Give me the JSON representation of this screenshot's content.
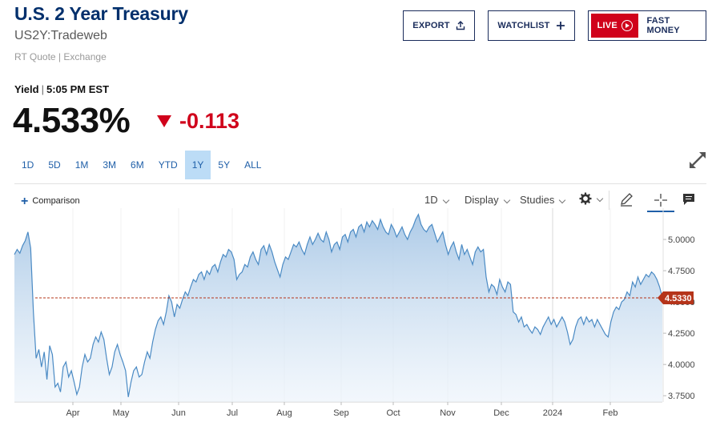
{
  "header": {
    "title": "U.S. 2 Year Treasury",
    "symbol": "US2Y:Tradeweb",
    "quote_source": "RT Quote | Exchange",
    "yield_label": "Yield",
    "time": "5:05 PM EST",
    "price": "4.533%",
    "change": "-0.113",
    "change_color": "#d0021b"
  },
  "buttons": {
    "export": "EXPORT",
    "watchlist": "WATCHLIST",
    "live": "LIVE",
    "fast_money": "FAST MONEY"
  },
  "ranges": [
    "1D",
    "5D",
    "1M",
    "3M",
    "6M",
    "YTD",
    "1Y",
    "5Y",
    "ALL"
  ],
  "active_range": "1Y",
  "toolbar": {
    "comparison": "Comparison",
    "interval": "1D",
    "display": "Display",
    "studies": "Studies"
  },
  "chart_data": {
    "type": "area",
    "x_ticks": [
      "Apr",
      "May",
      "Jun",
      "Jul",
      "Aug",
      "Sep",
      "Oct",
      "Nov",
      "Dec",
      "2024",
      "Feb"
    ],
    "y_ticks": [
      "5.0000",
      "4.7500",
      "4.5000",
      "4.2500",
      "4.0000",
      "3.7500"
    ],
    "ylim": [
      3.7,
      5.25
    ],
    "current_value_label": "4.5330",
    "current_value": 4.533,
    "line_color": "#4a8ac4",
    "marker_color": "#b5341a",
    "values": [
      4.88,
      4.92,
      4.89,
      4.95,
      4.99,
      5.06,
      4.93,
      4.42,
      4.05,
      4.12,
      3.98,
      4.1,
      3.88,
      4.15,
      4.08,
      3.82,
      3.85,
      3.78,
      3.98,
      4.02,
      3.9,
      3.95,
      3.86,
      3.76,
      3.82,
      3.98,
      4.08,
      4.02,
      4.05,
      4.16,
      4.22,
      4.18,
      4.26,
      4.2,
      4.05,
      3.92,
      3.98,
      4.1,
      4.16,
      4.08,
      4.02,
      3.95,
      3.74,
      3.86,
      3.95,
      3.98,
      3.9,
      3.92,
      4.02,
      4.1,
      4.05,
      4.18,
      4.28,
      4.35,
      4.38,
      4.32,
      4.42,
      4.55,
      4.5,
      4.38,
      4.48,
      4.45,
      4.52,
      4.58,
      4.55,
      4.62,
      4.68,
      4.66,
      4.72,
      4.74,
      4.68,
      4.75,
      4.72,
      4.78,
      4.8,
      4.74,
      4.82,
      4.88,
      4.86,
      4.92,
      4.9,
      4.84,
      4.68,
      4.72,
      4.74,
      4.8,
      4.78,
      4.86,
      4.9,
      4.84,
      4.8,
      4.92,
      4.95,
      4.88,
      4.96,
      4.9,
      4.82,
      4.76,
      4.7,
      4.8,
      4.86,
      4.84,
      4.9,
      4.96,
      4.94,
      4.98,
      4.92,
      4.88,
      4.96,
      5.02,
      4.96,
      5.0,
      5.05,
      5.0,
      4.98,
      5.06,
      5.0,
      4.9,
      4.96,
      4.98,
      4.92,
      5.02,
      5.04,
      4.98,
      5.06,
      5.08,
      5.02,
      5.1,
      5.12,
      5.06,
      5.14,
      5.1,
      5.15,
      5.12,
      5.08,
      5.16,
      5.1,
      5.06,
      5.04,
      5.12,
      5.08,
      5.02,
      5.06,
      5.1,
      5.04,
      5.0,
      5.06,
      5.1,
      5.16,
      5.2,
      5.12,
      5.08,
      5.06,
      5.1,
      5.12,
      5.05,
      4.98,
      5.02,
      5.06,
      4.96,
      4.88,
      4.94,
      4.98,
      4.9,
      4.84,
      4.96,
      4.88,
      4.92,
      4.86,
      4.8,
      4.9,
      4.94,
      4.9,
      4.92,
      4.7,
      4.58,
      4.64,
      4.62,
      4.56,
      4.68,
      4.62,
      4.58,
      4.66,
      4.64,
      4.42,
      4.4,
      4.34,
      4.38,
      4.3,
      4.32,
      4.28,
      4.25,
      4.3,
      4.28,
      4.24,
      4.3,
      4.34,
      4.38,
      4.32,
      4.36,
      4.3,
      4.34,
      4.38,
      4.34,
      4.26,
      4.16,
      4.2,
      4.3,
      4.36,
      4.38,
      4.32,
      4.38,
      4.34,
      4.36,
      4.3,
      4.36,
      4.32,
      4.28,
      4.24,
      4.22,
      4.34,
      4.42,
      4.46,
      4.44,
      4.5,
      4.52,
      4.58,
      4.55,
      4.66,
      4.62,
      4.7,
      4.64,
      4.68,
      4.72,
      4.7,
      4.74,
      4.72,
      4.68,
      4.62,
      4.533
    ]
  }
}
